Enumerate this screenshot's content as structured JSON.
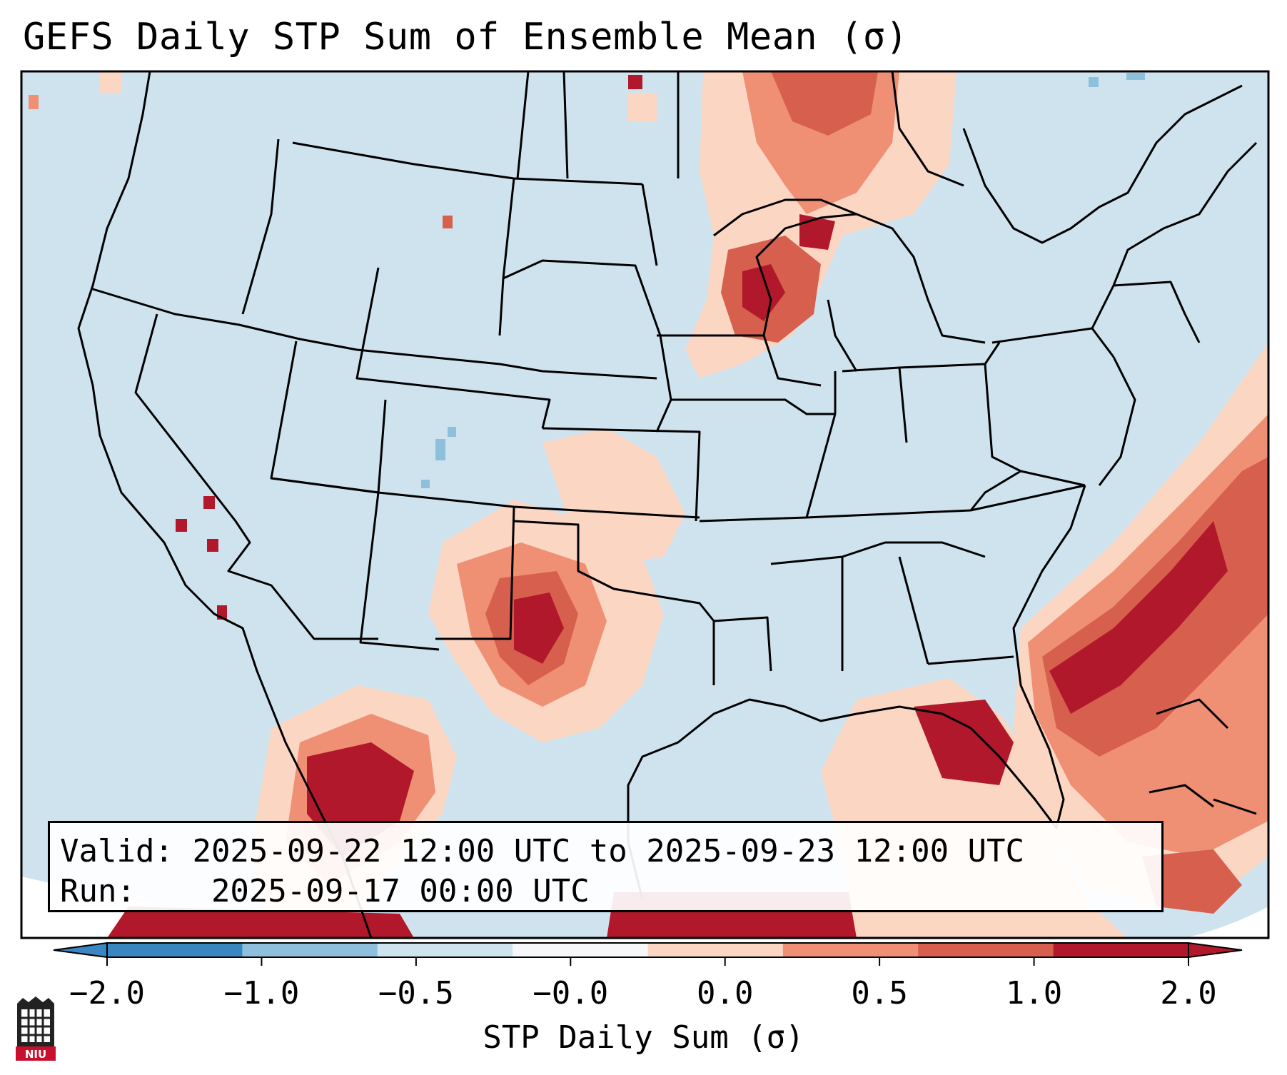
{
  "title": "GEFS Daily STP Sum of Ensemble Mean (σ)",
  "info": {
    "valid_label": "Valid:",
    "valid_value": "2025-09-22 12:00 UTC to 2025-09-23 12:00 UTC",
    "run_label": "Run:",
    "run_value": "2025-09-17 00:00 UTC"
  },
  "colorbar": {
    "label": "STP Daily Sum (σ)",
    "ticks": [
      "−2.0",
      "−1.0",
      "−0.5",
      "−0.0",
      "0.0",
      "0.5",
      "1.0",
      "2.0"
    ],
    "colors": [
      "#3a86c0",
      "#8ec0dd",
      "#cfe3ef",
      "#f5f7f9",
      "#fbd6c3",
      "#ef8f74",
      "#d6604d",
      "#b2182b"
    ]
  },
  "map_colors": {
    "background": "#cfe3ef",
    "light_red": "#fbd6c3",
    "medium_red": "#ef8f74",
    "red": "#d6604d",
    "dark_red": "#b2182b",
    "light_blue": "#8ec0dd",
    "outline": "#000000"
  },
  "logo": {
    "text": "NIU",
    "icon": "niu-logo-icon"
  }
}
